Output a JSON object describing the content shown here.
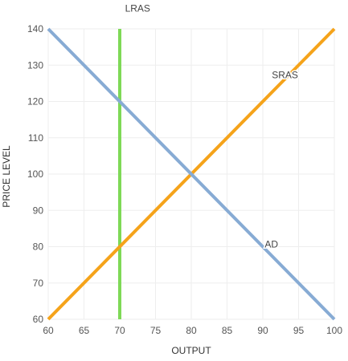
{
  "chart_data": {
    "type": "line",
    "title": "",
    "xlabel": "OUTPUT",
    "ylabel": "PRICE LEVEL",
    "xlim": [
      60,
      100
    ],
    "ylim": [
      60,
      140
    ],
    "xticks": [
      60,
      65,
      70,
      75,
      80,
      85,
      90,
      95,
      100
    ],
    "yticks": [
      60,
      70,
      80,
      90,
      100,
      110,
      120,
      130,
      140
    ],
    "grid": true,
    "legend": "none",
    "series": [
      {
        "name": "LRAS",
        "color": "#7ed957",
        "points": [
          [
            70,
            60
          ],
          [
            70,
            140
          ]
        ]
      },
      {
        "name": "SRAS",
        "color": "#f5a31a",
        "points": [
          [
            60,
            60
          ],
          [
            100,
            140
          ]
        ]
      },
      {
        "name": "AD",
        "color": "#87abd4",
        "points": [
          [
            60,
            140
          ],
          [
            100,
            60
          ]
        ]
      }
    ],
    "series_labels": [
      {
        "text": "LRAS",
        "x": 72.5,
        "y": 144.8
      },
      {
        "text": "SRAS",
        "x": 93.1,
        "y": 126.4
      },
      {
        "text": "AD",
        "x": 91.2,
        "y": 79.8
      }
    ]
  }
}
